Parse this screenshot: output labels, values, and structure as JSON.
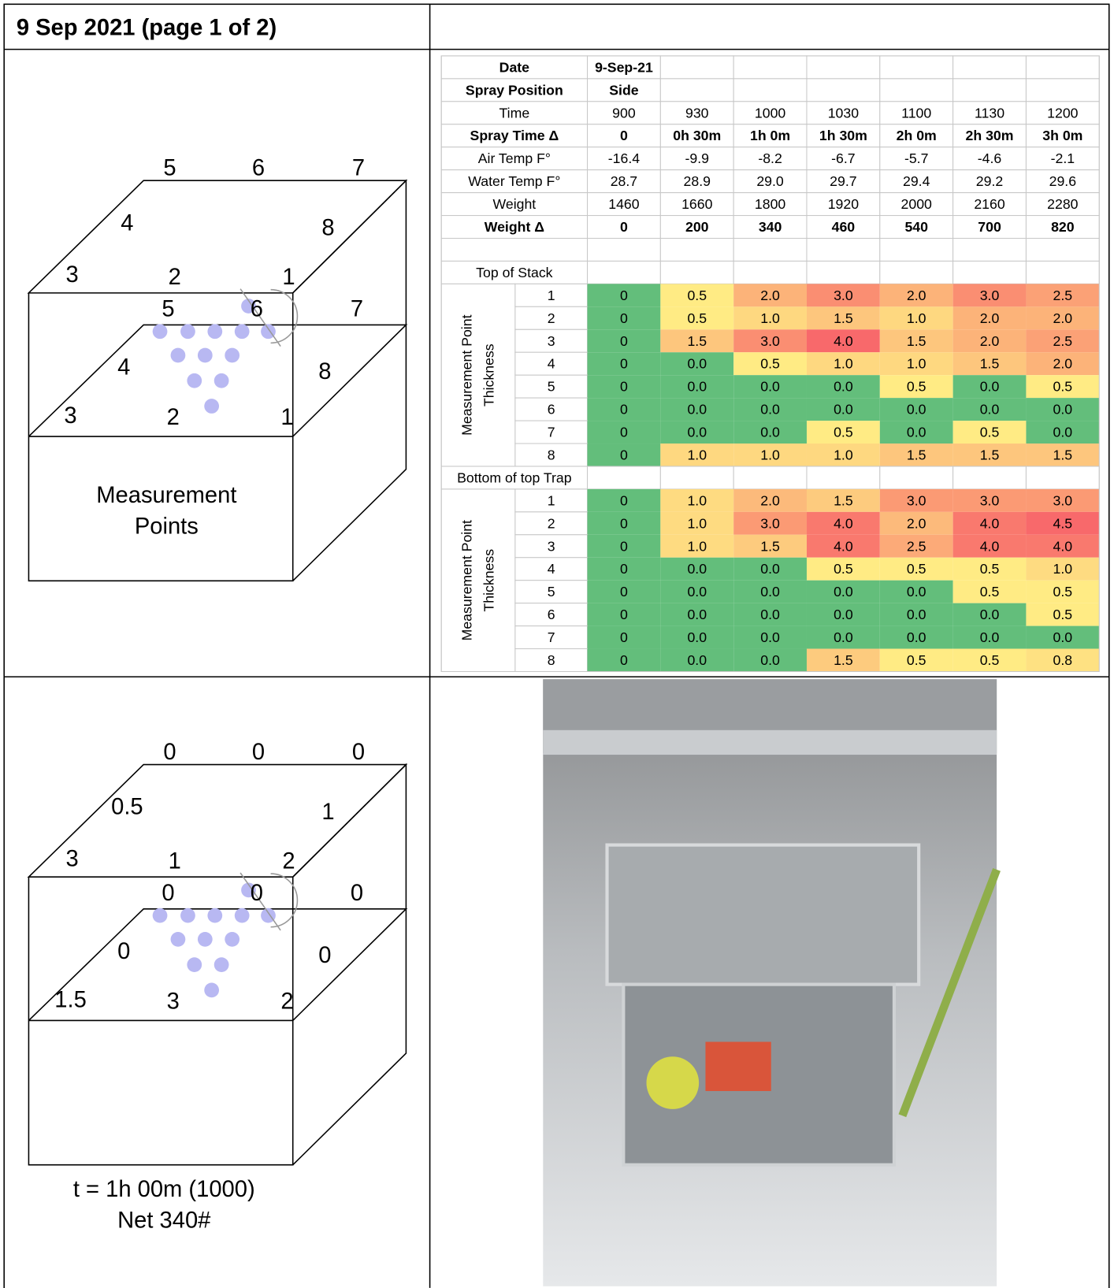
{
  "header": {
    "title": "9 Sep 2021 (page 1 of 2)"
  },
  "points_diagram": {
    "top_layer": [
      5,
      6,
      7,
      4,
      8,
      3,
      2,
      1
    ],
    "middle_layer": [
      5,
      6,
      7,
      4,
      8,
      3,
      2,
      1
    ],
    "caption": [
      "Measurement",
      "Points"
    ]
  },
  "thickness_diagram": {
    "top_layer": [
      0,
      0,
      0,
      0.5,
      1,
      3,
      1,
      2
    ],
    "middle_layer": [
      0,
      0,
      0,
      0,
      0,
      1.5,
      3,
      2
    ],
    "caption": [
      "t = 1h 00m (1000)",
      "Net 340#"
    ]
  },
  "table": {
    "color_scale": [
      "#63BE7B",
      "#FFEB84",
      "#F8696B"
    ],
    "rows": [
      {
        "label": "Date",
        "bold": true,
        "values": [
          "9-Sep-21"
        ]
      },
      {
        "label": "Spray Position",
        "bold": true,
        "values": [
          "Side"
        ]
      },
      {
        "label": "Time",
        "values": [
          900,
          930,
          1000,
          1030,
          1100,
          1130,
          1200
        ]
      },
      {
        "label": "Spray Time Δ",
        "bold": true,
        "values": [
          0,
          "0h 30m",
          "1h 0m",
          "1h 30m",
          "2h 0m",
          "2h 30m",
          "3h 0m"
        ]
      },
      {
        "label": "Air Temp F°",
        "values": [
          -16.4,
          -9.9,
          -8.2,
          -6.7,
          -5.7,
          -4.6,
          -2.1
        ]
      },
      {
        "label": "Water Temp F°",
        "values": [
          28.7,
          28.9,
          "29.0",
          29.7,
          29.4,
          29.2,
          29.6
        ]
      },
      {
        "label": "Weight",
        "values": [
          1460,
          1660,
          1800,
          1920,
          2000,
          2160,
          2280
        ]
      },
      {
        "label": "Weight Δ",
        "bold": true,
        "values": [
          0,
          200,
          340,
          460,
          540,
          700,
          820
        ]
      }
    ],
    "sections": [
      {
        "title": "Top of Stack",
        "axis_label": [
          "Measurement Point",
          "Thickness"
        ],
        "points": [
          1,
          2,
          3,
          4,
          5,
          6,
          7,
          8
        ],
        "values": [
          [
            "0",
            "0.5",
            "2.0",
            "3.0",
            "2.0",
            "3.0",
            "2.5"
          ],
          [
            "0",
            "0.5",
            "1.0",
            "1.5",
            "1.0",
            "2.0",
            "2.0"
          ],
          [
            "0",
            "1.5",
            "3.0",
            "4.0",
            "1.5",
            "2.0",
            "2.5"
          ],
          [
            "0",
            "0.0",
            "0.5",
            "1.0",
            "1.0",
            "1.5",
            "2.0"
          ],
          [
            "0",
            "0.0",
            "0.0",
            "0.0",
            "0.5",
            "0.0",
            "0.5"
          ],
          [
            "0",
            "0.0",
            "0.0",
            "0.0",
            "0.0",
            "0.0",
            "0.0"
          ],
          [
            "0",
            "0.0",
            "0.0",
            "0.5",
            "0.0",
            "0.5",
            "0.0"
          ],
          [
            "0",
            "1.0",
            "1.0",
            "1.0",
            "1.5",
            "1.5",
            "1.5"
          ]
        ]
      },
      {
        "title": "Bottom of top Trap",
        "axis_label": [
          "Measurement Point",
          "Thickness"
        ],
        "points": [
          1,
          2,
          3,
          4,
          5,
          6,
          7,
          8
        ],
        "values": [
          [
            "0",
            "1.0",
            "2.0",
            "1.5",
            "3.0",
            "3.0",
            "3.0"
          ],
          [
            "0",
            "1.0",
            "3.0",
            "4.0",
            "2.0",
            "4.0",
            "4.5"
          ],
          [
            "0",
            "1.0",
            "1.5",
            "4.0",
            "2.5",
            "4.0",
            "4.0"
          ],
          [
            "0",
            "0.0",
            "0.0",
            "0.5",
            "0.5",
            "0.5",
            "1.0"
          ],
          [
            "0",
            "0.0",
            "0.0",
            "0.0",
            "0.0",
            "0.5",
            "0.5"
          ],
          [
            "0",
            "0.0",
            "0.0",
            "0.0",
            "0.0",
            "0.0",
            "0.5"
          ],
          [
            "0",
            "0.0",
            "0.0",
            "0.0",
            "0.0",
            "0.0",
            "0.0"
          ],
          [
            "0",
            "0.0",
            "0.0",
            "1.5",
            "0.5",
            "0.5",
            "0.8"
          ]
        ]
      }
    ]
  }
}
